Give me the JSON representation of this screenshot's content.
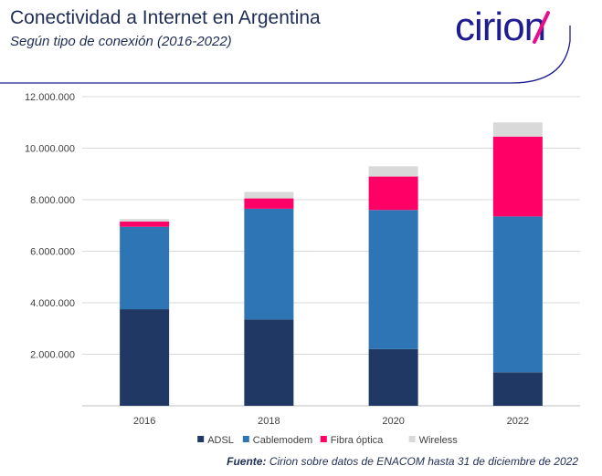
{
  "header": {
    "title": "Conectividad a Internet en Argentina",
    "subtitle": "Según tipo de conexión (2016-2022)",
    "logo_text": "cirion",
    "brand_color": "#1f1c8f",
    "accent_color": "#ea0d8c"
  },
  "footer": {
    "source_label": "Fuente:",
    "source_text": "Cirion sobre datos de ENACOM hasta 31 de diciembre de 2022"
  },
  "chart_data": {
    "type": "bar",
    "stacked": true,
    "title": "",
    "xlabel": "",
    "ylabel": "",
    "categories": [
      "2016",
      "2018",
      "2020",
      "2022"
    ],
    "ylim": [
      0,
      12000000
    ],
    "yticks": [
      0,
      2000000,
      4000000,
      6000000,
      8000000,
      10000000,
      12000000
    ],
    "ytick_labels": [
      "",
      "2.000.000",
      "4.000.000",
      "6.000.000",
      "8.000.000",
      "10.000.000",
      "12.000.000"
    ],
    "grid": true,
    "legend_position": "bottom",
    "series": [
      {
        "name": "ADSL",
        "color": "#1f3864",
        "values": [
          3750000,
          3350000,
          2200000,
          1300000
        ]
      },
      {
        "name": "Cablemodem",
        "color": "#2e75b6",
        "values": [
          3200000,
          4300000,
          5400000,
          6050000
        ]
      },
      {
        "name": "Fibra óptica",
        "color": "#ff0066",
        "values": [
          200000,
          400000,
          1300000,
          3100000
        ]
      },
      {
        "name": "Wireless",
        "color": "#d9d9d9",
        "values": [
          100000,
          250000,
          400000,
          550000
        ]
      }
    ]
  }
}
